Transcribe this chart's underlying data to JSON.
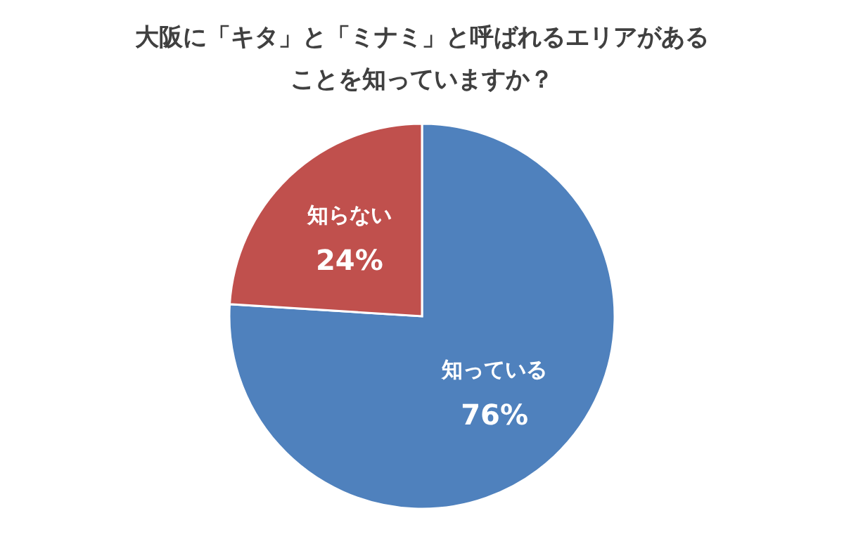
{
  "chart_data": {
    "type": "pie",
    "title": "大阪に「キタ」と「ミナミ」と呼ばれるエリアがあることを知っていますか？",
    "categories": [
      "知っている",
      "知らない"
    ],
    "values": [
      76,
      24
    ],
    "value_labels": [
      "76%",
      "24%"
    ],
    "colors": [
      "#4f81bd",
      "#c0504d"
    ],
    "legend": false
  }
}
